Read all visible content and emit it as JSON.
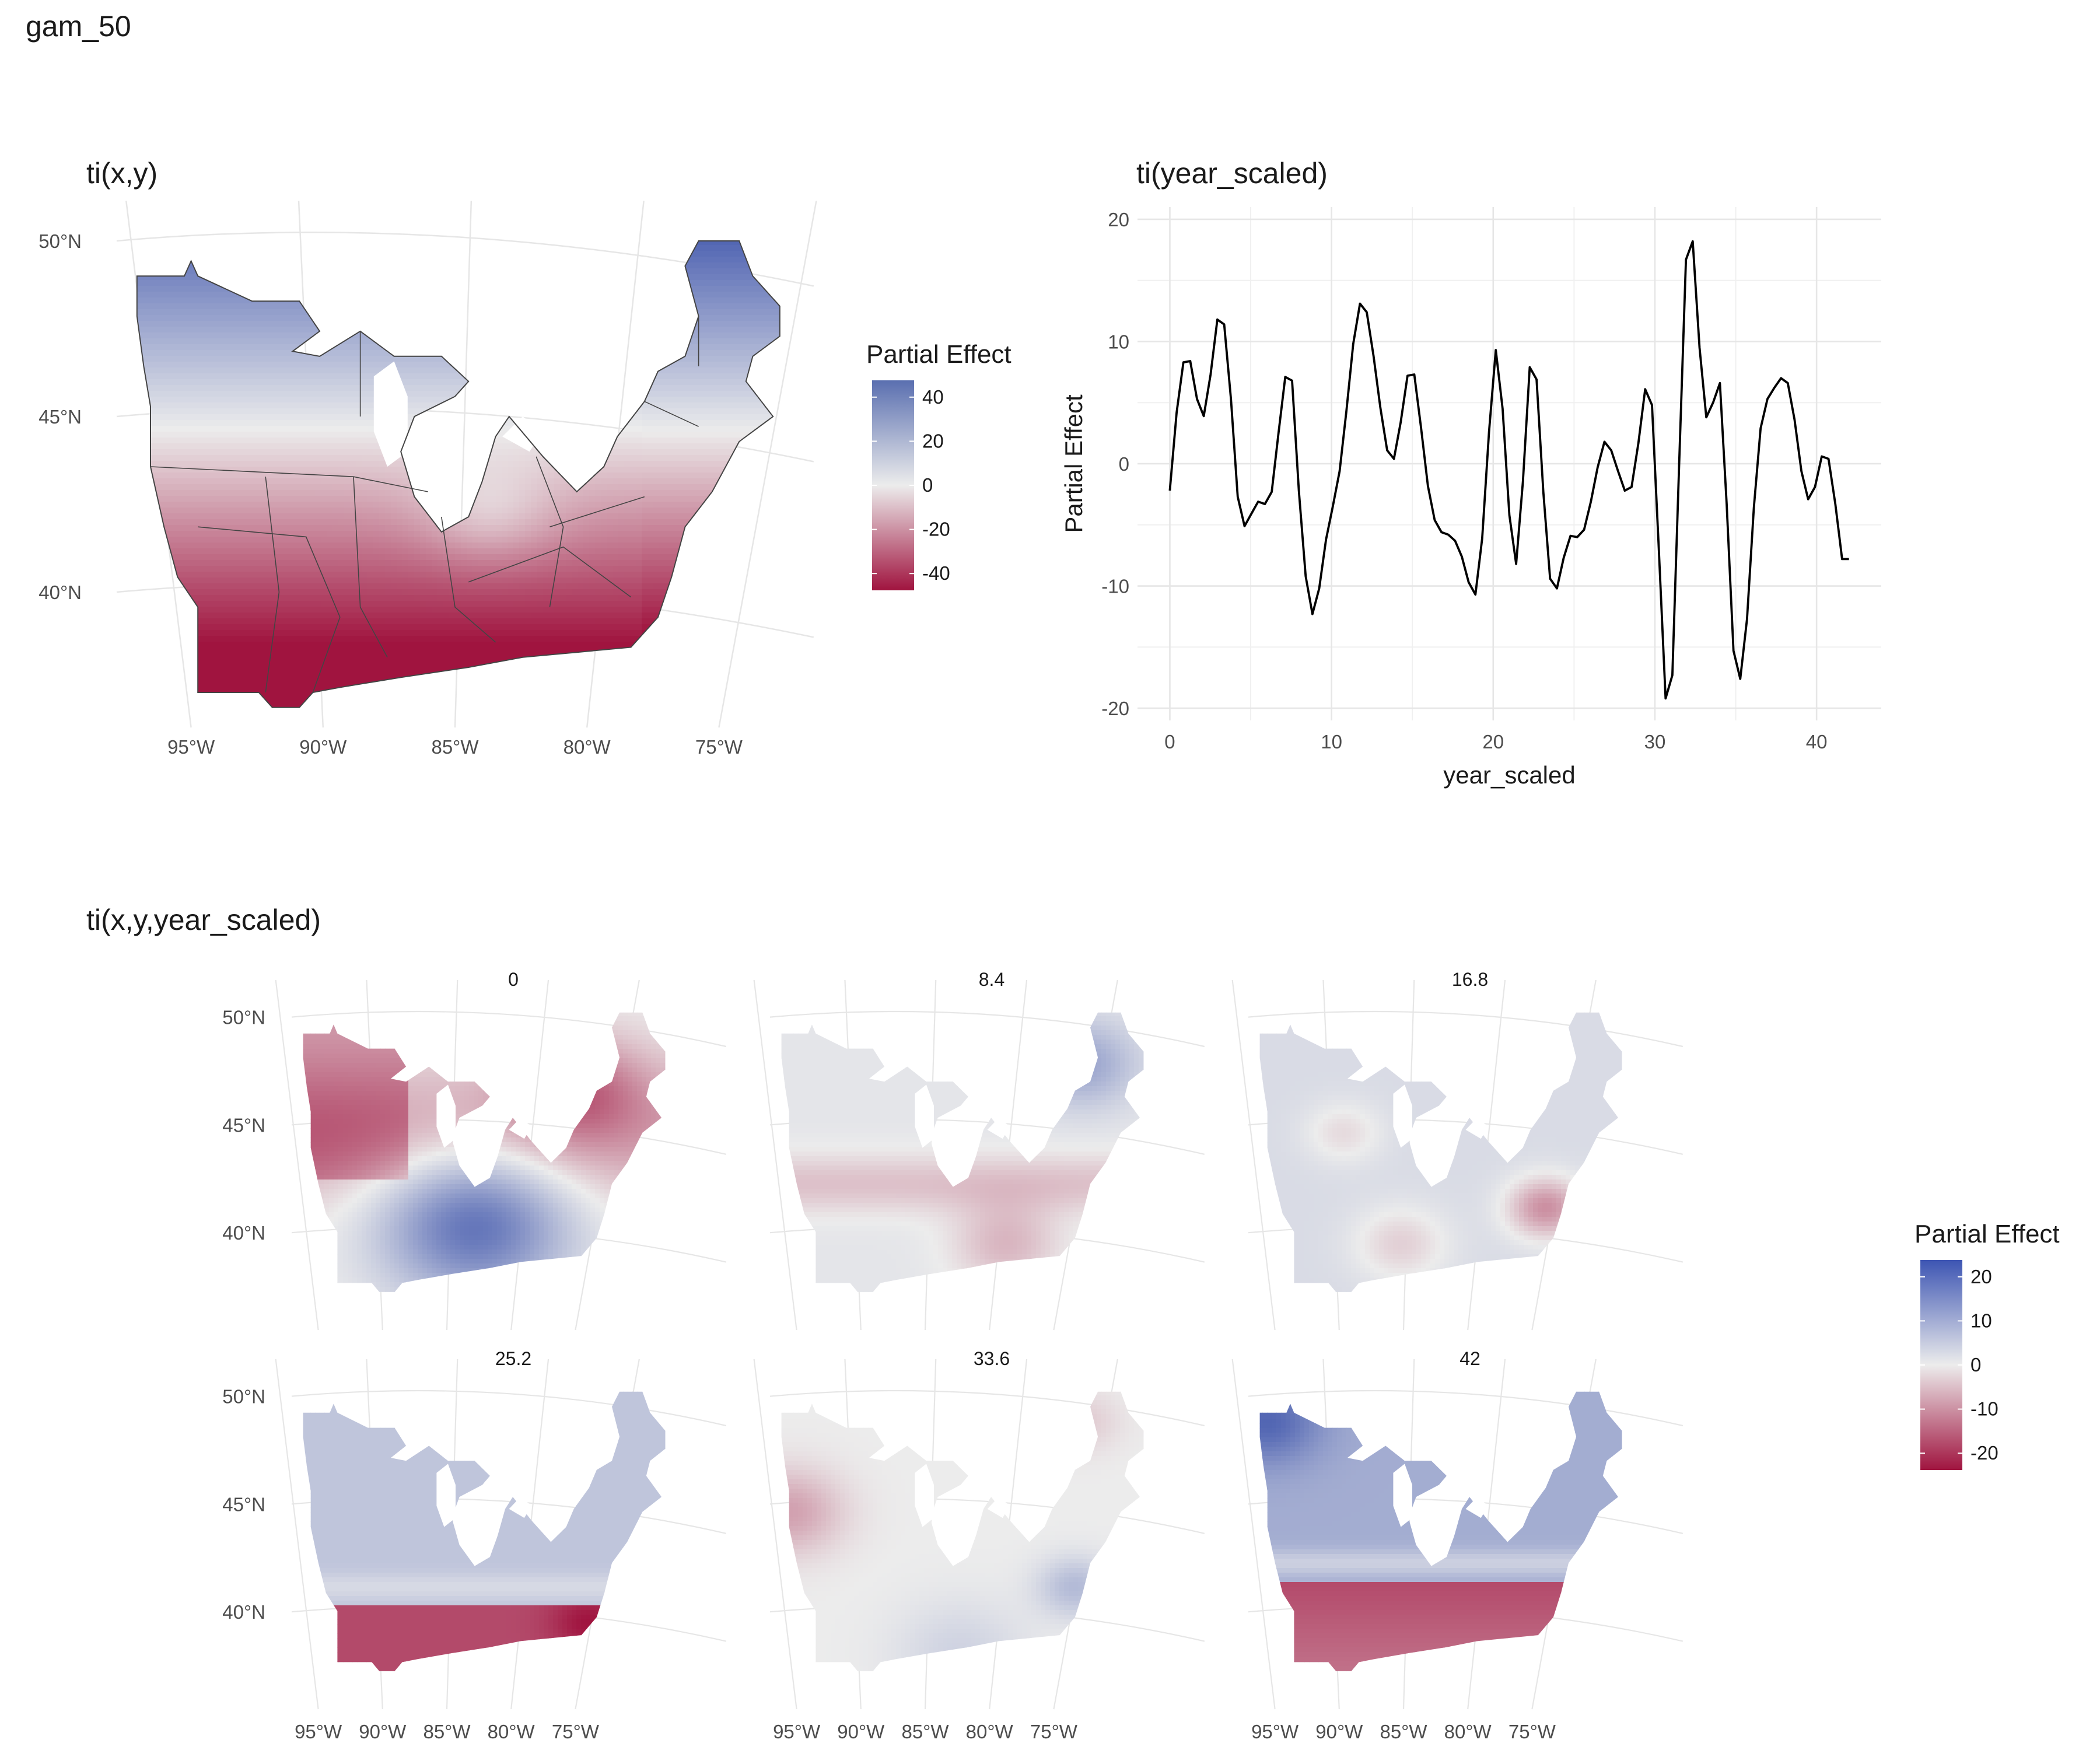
{
  "page_title": "gam_50",
  "colors": {
    "neg": "#a0143f",
    "mid": "#ececec",
    "pos": "#4a5fb0",
    "grid": "#e6e6e6",
    "line": "#000000",
    "border": "#444444"
  },
  "chart_data": [
    {
      "id": "map_xy",
      "type": "heatmap",
      "title": "ti(x,y)",
      "x_ticks": [
        "95°W",
        "90°W",
        "85°W",
        "80°W",
        "75°W"
      ],
      "y_ticks": [
        "50°N",
        "45°N",
        "40°N"
      ],
      "legend": {
        "title": "Partial Effect",
        "ticks": [
          "40",
          "20",
          "0",
          "-20",
          "-40"
        ],
        "range": [
          -50,
          48
        ]
      },
      "description_fields": {
        "gradient": "north positive, south negative"
      }
    },
    {
      "id": "line_year",
      "type": "line",
      "title": "ti(year_scaled)",
      "xlabel": "year_scaled",
      "ylabel": "Partial Effect",
      "xlim": [
        -2,
        44
      ],
      "ylim": [
        -21,
        21
      ],
      "x_ticks": [
        0,
        10,
        20,
        30,
        40
      ],
      "y_ticks": [
        -20,
        -10,
        0,
        10,
        20
      ],
      "x": [
        0,
        0.42,
        0.84,
        1.26,
        1.68,
        2.1,
        2.52,
        2.94,
        3.36,
        3.78,
        4.2,
        4.62,
        5.04,
        5.46,
        5.88,
        6.3,
        6.72,
        7.14,
        7.56,
        7.98,
        8.4,
        8.82,
        9.24,
        9.66,
        10.08,
        10.5,
        10.92,
        11.34,
        11.76,
        12.18,
        12.6,
        13.02,
        13.44,
        13.86,
        14.28,
        14.7,
        15.12,
        15.54,
        15.96,
        16.38,
        16.8,
        17.22,
        17.64,
        18.06,
        18.48,
        18.9,
        19.32,
        19.74,
        20.16,
        20.58,
        21,
        21.42,
        21.84,
        22.26,
        22.68,
        23.1,
        23.52,
        23.94,
        24.36,
        24.78,
        25.2,
        25.62,
        26.04,
        26.46,
        26.88,
        27.3,
        27.72,
        28.14,
        28.56,
        28.98,
        29.4,
        29.82,
        30.24,
        30.66,
        31.08,
        31.5,
        31.92,
        32.34,
        32.76,
        33.18,
        33.6,
        34.02,
        34.44,
        34.86,
        35.28,
        35.7,
        36.12,
        36.54,
        36.96,
        37.38,
        37.8,
        38.22,
        38.64,
        39.06,
        39.48,
        39.9,
        40.32,
        40.74,
        41.16,
        41.58,
        42
      ],
      "y": [
        -2.2,
        4.2,
        8.3,
        8.4,
        5.3,
        3.9,
        7.3,
        11.8,
        11.4,
        5.3,
        -2.7,
        -5.1,
        -4.1,
        -3.1,
        -3.3,
        -2.3,
        2.5,
        7.1,
        6.8,
        -2.2,
        -9.2,
        -12.3,
        -10.2,
        -6.2,
        -3.5,
        -0.6,
        4.3,
        9.8,
        13.1,
        12.4,
        8.8,
        4.6,
        1.1,
        0.4,
        3.4,
        7.2,
        7.3,
        2.9,
        -1.8,
        -4.6,
        -5.6,
        -5.8,
        -6.3,
        -7.6,
        -9.7,
        -10.7,
        -6.1,
        2.6,
        9.3,
        4.5,
        -4.2,
        -8.2,
        -1.4,
        7.9,
        6.9,
        -2.3,
        -9.4,
        -10.2,
        -7.7,
        -5.9,
        -6,
        -5.4,
        -3.1,
        -0.3,
        1.8,
        1.1,
        -0.6,
        -2.2,
        -1.9,
        1.7,
        6.1,
        4.8,
        -6.9,
        -19.2,
        -17.3,
        -0.1,
        16.7,
        18.2,
        9.5,
        3.8,
        5,
        6.6,
        -3.3,
        -15.3,
        -17.6,
        -12.7,
        -3.6,
        2.9,
        5.3,
        6.2,
        7,
        6.6,
        3.6,
        -0.6,
        -2.9,
        -1.9,
        0.6,
        0.4,
        -3.3,
        -7.8,
        -7.8
      ]
    },
    {
      "id": "facet_maps",
      "type": "heatmap",
      "title": "ti(x,y,year_scaled)",
      "facets": [
        "0",
        "8.4",
        "16.8",
        "25.2",
        "33.6",
        "42"
      ],
      "x_ticks": [
        "95°W",
        "90°W",
        "85°W",
        "80°W",
        "75°W"
      ],
      "y_ticks": [
        "50°N",
        "45°N",
        "40°N"
      ],
      "legend": {
        "title": "Partial Effect",
        "ticks": [
          "20",
          "10",
          "0",
          "-10",
          "-20"
        ],
        "range": [
          -28,
          28
        ]
      }
    }
  ]
}
